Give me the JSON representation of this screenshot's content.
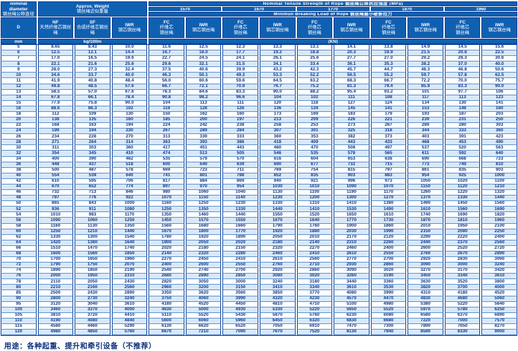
{
  "colors": {
    "header_bg": "#1060b2",
    "border": "#0a3e94",
    "row_alt_bg": "#d8e9f9",
    "data_text": "#16377f",
    "header_text": "#ffffff"
  },
  "header": {
    "diameter": {
      "line1": "nominal",
      "line2": "diameter",
      "line3": "钢丝绳公称直径",
      "symbol": "D",
      "unit": "mm"
    },
    "weight": {
      "title_en": "Approx. Weight",
      "title_zh": "钢丝绳近似重量",
      "unit": "kg/100m",
      "cols": [
        {
          "abbr": "NF",
          "zh": "天然纤维芯钢丝绳"
        },
        {
          "abbr": "SF",
          "zh": "合成纤维芯钢丝绳"
        },
        {
          "abbr": "IWR",
          "zh": "钢芯钢丝绳"
        }
      ]
    },
    "tensile": {
      "title": "Nominal Tensile Strength of Rope 钢丝绳公称抗拉强度 (MPa)",
      "grades": [
        "1570",
        "1670",
        "1770",
        "1870",
        "1960"
      ]
    },
    "breaking": {
      "title": "Minimun Breaking Load of Rope 钢丝绳最小破断拉力",
      "unit": "(KN)",
      "fc": {
        "abbr": "FC",
        "zh1": "纤维芯",
        "zh2": "钢丝绳"
      },
      "iwr": {
        "abbr": "IWR",
        "zh": "钢芯钢丝绳"
      }
    }
  },
  "footer": {
    "usage": "用途：各种起重、提升和牵引设备（不推荐）"
  },
  "table": {
    "columns": [
      "D",
      "NF",
      "SF",
      "IWR",
      "1570 FC",
      "1570 IWR",
      "1670 FC",
      "1670 IWR",
      "1770 FC",
      "1770 IWR",
      "1870 FC",
      "1870 IWR",
      "1960 FC",
      "1960 IWR"
    ],
    "rows": [
      [
        "5",
        "8.65",
        "8.43",
        "10.0",
        "11.6",
        "12.5",
        "12.3",
        "13.3",
        "13.1",
        "14.1",
        "13.8",
        "14.9",
        "14.5",
        "15.6"
      ],
      [
        "6",
        "12.5",
        "12.1",
        "14.4",
        "16.7",
        "18.0",
        "17.7",
        "19.2",
        "18.8",
        "20.3",
        "19.9",
        "21.5",
        "20.8",
        "22.5"
      ],
      [
        "7",
        "17.0",
        "16.5",
        "19.6",
        "22.7",
        "24.5",
        "24.1",
        "26.1",
        "25.6",
        "27.7",
        "27.0",
        "29.2",
        "28.3",
        "30.6"
      ],
      [
        "8",
        "22.1",
        "21.6",
        "25.6",
        "29.6",
        "32.1",
        "31.5",
        "34.1",
        "33.4",
        "36.1",
        "35.3",
        "38.2",
        "37.0",
        "40.0"
      ],
      [
        "9",
        "28.0",
        "27.3",
        "32.4",
        "37.5",
        "40.6",
        "39.9",
        "43.2",
        "42.3",
        "45.7",
        "44.7",
        "48.3",
        "46.8",
        "50.6"
      ],
      [
        "10",
        "34.6",
        "33.7",
        "40.0",
        "46.3",
        "50.1",
        "49.3",
        "53.3",
        "52.2",
        "56.5",
        "55.2",
        "59.7",
        "57.8",
        "62.5"
      ],
      [
        "11",
        "41.9",
        "40.8",
        "48.4",
        "56.0",
        "60.6",
        "59.6",
        "64.5",
        "63.2",
        "68.3",
        "66.7",
        "72.2",
        "70.0",
        "75.7"
      ],
      [
        "12",
        "49.8",
        "48.5",
        "57.6",
        "66.7",
        "72.1",
        "70.9",
        "76.7",
        "75.2",
        "81.3",
        "79.4",
        "85.9",
        "83.3",
        "90.0"
      ],
      [
        "13",
        "58.5",
        "57.0",
        "67.6",
        "78.3",
        "84.6",
        "83.3",
        "90.0",
        "88.2",
        "95.4",
        "93.2",
        "101",
        "97.7",
        "106"
      ],
      [
        "14",
        "67.8",
        "66.1",
        "78.4",
        "90.8",
        "98.2",
        "96.6",
        "104",
        "102",
        "111",
        "108",
        "117",
        "113",
        "123"
      ],
      [
        "15",
        "77.9",
        "75.8",
        "90.0",
        "104",
        "113",
        "111",
        "120",
        "118",
        "127",
        "124",
        "134",
        "130",
        "141"
      ],
      [
        "16",
        "88.6",
        "86.3",
        "102",
        "119",
        "128",
        "126",
        "136",
        "134",
        "145",
        "141",
        "153",
        "148",
        "160"
      ],
      [
        "18",
        "112",
        "109",
        "130",
        "150",
        "162",
        "160",
        "173",
        "169",
        "183",
        "179",
        "193",
        "187",
        "203"
      ],
      [
        "20",
        "138",
        "135",
        "160",
        "185",
        "200",
        "197",
        "213",
        "209",
        "226",
        "221",
        "239",
        "231",
        "250"
      ],
      [
        "22",
        "168",
        "163",
        "194",
        "224",
        "242",
        "238",
        "258",
        "253",
        "273",
        "267",
        "289",
        "280",
        "303"
      ],
      [
        "24",
        "199",
        "194",
        "230",
        "267",
        "289",
        "284",
        "307",
        "301",
        "325",
        "318",
        "344",
        "333",
        "360"
      ],
      [
        "26",
        "234",
        "228",
        "270",
        "313",
        "339",
        "333",
        "360",
        "353",
        "382",
        "373",
        "403",
        "391",
        "423"
      ],
      [
        "28",
        "271",
        "264",
        "314",
        "363",
        "393",
        "386",
        "418",
        "409",
        "443",
        "433",
        "468",
        "453",
        "490"
      ],
      [
        "30",
        "311",
        "303",
        "360",
        "417",
        "451",
        "443",
        "480",
        "470",
        "508",
        "497",
        "537",
        "520",
        "563"
      ],
      [
        "32",
        "354",
        "345",
        "410",
        "474",
        "513",
        "505",
        "546",
        "535",
        "578",
        "565",
        "611",
        "592",
        "640"
      ],
      [
        "34",
        "400",
        "390",
        "462",
        "535",
        "579",
        "570",
        "616",
        "604",
        "653",
        "638",
        "690",
        "668",
        "723"
      ],
      [
        "36",
        "448",
        "437",
        "518",
        "600",
        "649",
        "639",
        "690",
        "677",
        "732",
        "715",
        "773",
        "749",
        "810"
      ],
      [
        "38",
        "500",
        "487",
        "578",
        "669",
        "723",
        "711",
        "769",
        "754",
        "815",
        "797",
        "861",
        "835",
        "903"
      ],
      [
        "40",
        "554",
        "539",
        "640",
        "741",
        "801",
        "788",
        "852",
        "835",
        "903",
        "883",
        "954",
        "925",
        "1000"
      ],
      [
        "42",
        "610",
        "595",
        "706",
        "817",
        "884",
        "869",
        "940",
        "921",
        "996",
        "973",
        "1050",
        "1020",
        "1100"
      ],
      [
        "44",
        "670",
        "652",
        "774",
        "897",
        "970",
        "954",
        "1030",
        "1010",
        "1090",
        "1070",
        "1150",
        "1120",
        "1210"
      ],
      [
        "46",
        "732",
        "713",
        "846",
        "980",
        "1060",
        "1040",
        "1130",
        "1100",
        "1190",
        "1170",
        "1260",
        "1220",
        "1320"
      ],
      [
        "48",
        "797",
        "776",
        "922",
        "1070",
        "1150",
        "1140",
        "1230",
        "1200",
        "1300",
        "1270",
        "1370",
        "1330",
        "1440"
      ],
      [
        "50",
        "865",
        "843",
        "1000",
        "1160",
        "1250",
        "1230",
        "1330",
        "1310",
        "1410",
        "1380",
        "1490",
        "1450",
        "1560"
      ],
      [
        "52",
        "936",
        "911",
        "1080",
        "1250",
        "1350",
        "1330",
        "1440",
        "1410",
        "1530",
        "1490",
        "1610",
        "1560",
        "1690"
      ],
      [
        "54",
        "1010",
        "983",
        "1170",
        "1350",
        "1460",
        "1440",
        "1550",
        "1520",
        "1650",
        "1610",
        "1740",
        "1690",
        "1820"
      ],
      [
        "56",
        "1090",
        "1060",
        "1250",
        "1450",
        "1570",
        "1550",
        "1670",
        "1640",
        "1770",
        "1730",
        "1870",
        "1810",
        "1960"
      ],
      [
        "58",
        "1160",
        "1130",
        "1350",
        "1560",
        "1680",
        "1660",
        "1790",
        "1760",
        "1900",
        "1860",
        "2010",
        "1950",
        "2100"
      ],
      [
        "60",
        "1250",
        "1210",
        "1440",
        "1670",
        "1800",
        "1770",
        "1920",
        "1880",
        "2030",
        "1990",
        "2150",
        "2080",
        "2250"
      ],
      [
        "62",
        "1330",
        "1300",
        "1540",
        "1780",
        "1920",
        "1890",
        "2050",
        "2010",
        "2170",
        "2120",
        "2290",
        "2220",
        "2400"
      ],
      [
        "64",
        "1420",
        "1380",
        "1640",
        "1900",
        "2050",
        "2020",
        "2180",
        "2140",
        "2310",
        "2260",
        "2440",
        "2370",
        "2560"
      ],
      [
        "66",
        "1510",
        "1470",
        "1740",
        "2020",
        "2180",
        "2150",
        "2320",
        "2270",
        "2460",
        "2400",
        "2600",
        "2520",
        "2720"
      ],
      [
        "68",
        "1600",
        "1560",
        "1850",
        "2140",
        "2320",
        "2280",
        "2460",
        "2410",
        "2610",
        "2550",
        "2760",
        "2670",
        "2890"
      ],
      [
        "70",
        "1700",
        "1650",
        "1960",
        "2270",
        "2450",
        "2410",
        "2610",
        "2560",
        "2770",
        "2700",
        "2920",
        "2830",
        "3060"
      ],
      [
        "72",
        "1790",
        "1750",
        "2070",
        "2400",
        "2600",
        "2550",
        "2760",
        "2710",
        "2930",
        "2860",
        "3090",
        "3000",
        "3240"
      ],
      [
        "74",
        "1890",
        "1850",
        "2190",
        "2540",
        "2740",
        "2700",
        "2920",
        "2860",
        "3090",
        "3020",
        "3270",
        "3170",
        "3420"
      ],
      [
        "76",
        "2000",
        "1950",
        "2310",
        "2680",
        "2890",
        "2850",
        "3080",
        "3020",
        "3260",
        "3190",
        "3450",
        "3340",
        "3610"
      ],
      [
        "78",
        "2110",
        "2050",
        "2430",
        "2820",
        "3050",
        "3000",
        "3240",
        "3180",
        "3440",
        "3360",
        "3630",
        "3520",
        "3800"
      ],
      [
        "80",
        "2210",
        "2160",
        "2560",
        "2960",
        "3200",
        "3150",
        "3410",
        "3340",
        "3610",
        "3530",
        "3820",
        "3700",
        "4000"
      ],
      [
        "85",
        "2500",
        "2430",
        "2890",
        "3350",
        "3620",
        "3560",
        "3850",
        "3770",
        "4080",
        "3990",
        "4310",
        "4180",
        "4520"
      ],
      [
        "90",
        "2800",
        "2730",
        "3240",
        "3750",
        "4060",
        "3990",
        "4320",
        "4230",
        "4570",
        "4470",
        "4830",
        "4680",
        "5060"
      ],
      [
        "95",
        "3120",
        "3040",
        "3610",
        "4180",
        "4520",
        "4450",
        "4810",
        "4710",
        "5100",
        "4980",
        "5380",
        "5220",
        "5640"
      ],
      [
        "100",
        "3460",
        "3370",
        "4000",
        "4630",
        "5000",
        "4930",
        "5330",
        "5220",
        "5650",
        "5520",
        "5970",
        "5780",
        "6250"
      ],
      [
        "105",
        "3810",
        "3720",
        "4410",
        "5110",
        "5520",
        "5430",
        "5870",
        "5760",
        "6230",
        "6080",
        "6580",
        "6370",
        "6890"
      ],
      [
        "110",
        "4190",
        "4080",
        "4840",
        "5600",
        "6060",
        "5960",
        "6450",
        "6320",
        "6830",
        "6680",
        "7220",
        "7000",
        "7570"
      ],
      [
        "115",
        "4580",
        "4460",
        "5290",
        "6130",
        "6620",
        "6520",
        "7050",
        "6910",
        "7470",
        "7300",
        "7890",
        "7650",
        "8270"
      ],
      [
        "120",
        "4980",
        "4850",
        "5760",
        "6670",
        "7210",
        "7090",
        "7670",
        "7520",
        "8130",
        "7940",
        "8590",
        "8330",
        "9000"
      ]
    ]
  }
}
